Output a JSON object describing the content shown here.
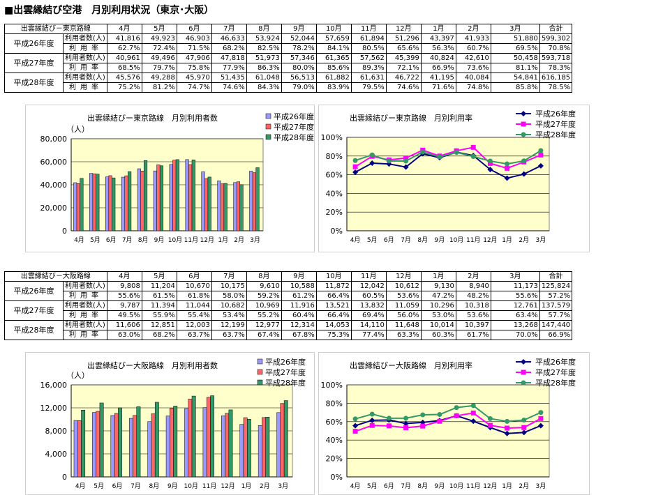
{
  "page": {
    "title": "■出雲縁結び空港　月別利用状況（東京･大阪）"
  },
  "months": [
    "4月",
    "5月",
    "6月",
    "7月",
    "8月",
    "9月",
    "10月",
    "11月",
    "12月",
    "1月",
    "2月",
    "3月"
  ],
  "colors": {
    "h26": "#9999ff",
    "h27": "#ff6666",
    "h28": "#339966",
    "h26_line": "#000080",
    "h27_line": "#ff00ff",
    "h28_line": "#339966",
    "plot_bg": "#ffffcc"
  },
  "tokyo_table": {
    "route_label": "出雲縁結び－東京路線",
    "total_label": "合計",
    "months": [
      "4月",
      "5月",
      "6月",
      "7月",
      "8月",
      "9月",
      "10月",
      "11月",
      "12月",
      "1月",
      "2月",
      "3月"
    ],
    "rows": [
      {
        "year": "平成26年度",
        "users_label": "利用者数(人)",
        "users": [
          "41,816",
          "49,923",
          "46,903",
          "46,633",
          "53,924",
          "52,044",
          "57,659",
          "61,894",
          "51,296",
          "43,397",
          "41,933",
          "51,880",
          "599,302"
        ],
        "rate_label": "利用率",
        "rates": [
          "62.7%",
          "72.4%",
          "71.5%",
          "68.2%",
          "82.5%",
          "78.2%",
          "84.1%",
          "80.5%",
          "65.6%",
          "56.3%",
          "60.7%",
          "69.5%",
          "70.8%"
        ]
      },
      {
        "year": "平成27年度",
        "users_label": "利用者数(人)",
        "users": [
          "40,961",
          "49,496",
          "47,906",
          "47,818",
          "51,973",
          "57,346",
          "61,365",
          "57,562",
          "45,399",
          "40,824",
          "42,610",
          "50,458",
          "593,718"
        ],
        "rate_label": "利用率",
        "rates": [
          "68.5%",
          "79.7%",
          "75.8%",
          "77.9%",
          "86.3%",
          "80.0%",
          "85.6%",
          "89.3%",
          "72.1%",
          "66.9%",
          "73.6%",
          "81.1%",
          "78.3%"
        ]
      },
      {
        "year": "平成28年度",
        "users_label": "利用者数(人)",
        "users": [
          "45,576",
          "49,288",
          "45,970",
          "51,435",
          "61,048",
          "56,513",
          "61,882",
          "61,631",
          "46,722",
          "41,195",
          "40,084",
          "54,841",
          "616,185"
        ],
        "rate_label": "利用率",
        "rates": [
          "75.2%",
          "81.2%",
          "74.7%",
          "74.6%",
          "84.3%",
          "79.0%",
          "83.9%",
          "79.5%",
          "74.6%",
          "71.6%",
          "74.8%",
          "85.8%",
          "78.5%"
        ]
      }
    ]
  },
  "osaka_table": {
    "route_label": "出雲縁結び－大阪路線",
    "total_label": "合計",
    "months": [
      "4月",
      "5月",
      "6月",
      "7月",
      "8月",
      "9月",
      "10月",
      "11月",
      "12月",
      "1月",
      "2月",
      "3月"
    ],
    "rows": [
      {
        "year": "平成26年度",
        "users_label": "利用者数(人)",
        "users": [
          "9,808",
          "11,204",
          "10,670",
          "10,175",
          "9,610",
          "10,588",
          "11,872",
          "12,042",
          "10,612",
          "9,130",
          "8,940",
          "11,173",
          "125,824"
        ],
        "rate_label": "利用率",
        "rates": [
          "55.6%",
          "61.5%",
          "61.8%",
          "58.0%",
          "59.2%",
          "61.2%",
          "66.4%",
          "60.5%",
          "53.6%",
          "47.2%",
          "48.2%",
          "55.6%",
          "57.2%"
        ]
      },
      {
        "year": "平成27年度",
        "users_label": "利用者数(人)",
        "users": [
          "9,787",
          "11,394",
          "11,044",
          "10,682",
          "10,969",
          "11,916",
          "13,521",
          "13,832",
          "11,059",
          "10,296",
          "10,318",
          "12,761",
          "137,579"
        ],
        "rate_label": "利用率",
        "rates": [
          "49.5%",
          "55.9%",
          "55.4%",
          "53.4%",
          "55.2%",
          "60.4%",
          "66.4%",
          "69.4%",
          "56.0%",
          "53.0%",
          "53.6%",
          "63.4%",
          "57.7%"
        ]
      },
      {
        "year": "平成28年度",
        "users_label": "利用者数(人)",
        "users": [
          "11,606",
          "12,851",
          "12,003",
          "12,199",
          "12,977",
          "12,314",
          "14,053",
          "14,110",
          "11,648",
          "10,014",
          "10,397",
          "13,268",
          "147,440"
        ],
        "rate_label": "利用率",
        "rates": [
          "63.0%",
          "68.2%",
          "63.7%",
          "63.7%",
          "67.4%",
          "67.8%",
          "75.3%",
          "77.4%",
          "63.3%",
          "60.3%",
          "61.7%",
          "70.0%",
          "66.9%"
        ]
      }
    ]
  },
  "chart_data": [
    {
      "id": "tokyo_users",
      "type": "bar",
      "title": "出雲縁結びー東京路線　月別利用者数",
      "ylabel": "（人）",
      "categories": [
        "4月",
        "5月",
        "6月",
        "7月",
        "8月",
        "9月",
        "10月",
        "11月",
        "12月",
        "1月",
        "2月",
        "3月"
      ],
      "ylim": [
        0,
        80000
      ],
      "yticks": [
        "0",
        "20,000",
        "40,000",
        "60,000",
        "80,000"
      ],
      "ytick_values": [
        0,
        20000,
        40000,
        60000,
        80000
      ],
      "legend": "top-right",
      "grid": true,
      "series": [
        {
          "name": "平成26年度",
          "values": [
            41816,
            49923,
            46903,
            46633,
            53924,
            52044,
            57659,
            61894,
            51296,
            43397,
            41933,
            51880
          ]
        },
        {
          "name": "平成27年度",
          "values": [
            40961,
            49496,
            47906,
            47818,
            51973,
            57346,
            61365,
            57562,
            45399,
            40824,
            42610,
            50458
          ]
        },
        {
          "name": "平成28年度",
          "values": [
            45576,
            49288,
            45970,
            51435,
            61048,
            56513,
            61882,
            61631,
            46722,
            41195,
            40084,
            54841
          ]
        }
      ]
    },
    {
      "id": "tokyo_rate",
      "type": "line",
      "title": "出雲縁結びー東京路線　月別利用率",
      "categories": [
        "4月",
        "5月",
        "6月",
        "7月",
        "8月",
        "9月",
        "10月",
        "11月",
        "12月",
        "1月",
        "2月",
        "3月"
      ],
      "ylim": [
        0,
        100
      ],
      "yticks": [
        "0%",
        "20%",
        "40%",
        "60%",
        "80%",
        "100%"
      ],
      "ytick_values": [
        0,
        20,
        40,
        60,
        80,
        100
      ],
      "legend": "top-right",
      "grid": true,
      "series": [
        {
          "name": "平成26年度",
          "values": [
            62.7,
            72.4,
            71.5,
            68.2,
            82.5,
            78.2,
            84.1,
            80.5,
            65.6,
            56.3,
            60.7,
            69.5
          ]
        },
        {
          "name": "平成27年度",
          "values": [
            68.5,
            79.7,
            75.8,
            77.9,
            86.3,
            80.0,
            85.6,
            89.3,
            72.1,
            66.9,
            73.6,
            81.1
          ]
        },
        {
          "name": "平成28年度",
          "values": [
            75.2,
            81.2,
            74.7,
            74.6,
            84.3,
            79.0,
            83.9,
            79.5,
            74.6,
            71.6,
            74.8,
            85.8
          ]
        }
      ]
    },
    {
      "id": "osaka_users",
      "type": "bar",
      "title": "出雲縁結びー大阪路線　月別利用者数",
      "ylabel": "（人）",
      "categories": [
        "4月",
        "5月",
        "6月",
        "7月",
        "8月",
        "9月",
        "10月",
        "11月",
        "12月",
        "1月",
        "2月",
        "3月"
      ],
      "ylim": [
        0,
        16000
      ],
      "yticks": [
        "0",
        "4,000",
        "8,000",
        "12,000",
        "16,000"
      ],
      "ytick_values": [
        0,
        4000,
        8000,
        12000,
        16000
      ],
      "legend": "top-right",
      "grid": true,
      "series": [
        {
          "name": "平成26年度",
          "values": [
            9808,
            11204,
            10670,
            10175,
            9610,
            10588,
            11872,
            12042,
            10612,
            9130,
            8940,
            11173
          ]
        },
        {
          "name": "平成27年度",
          "values": [
            9787,
            11394,
            11044,
            10682,
            10969,
            11916,
            13521,
            13832,
            11059,
            10296,
            10318,
            12761
          ]
        },
        {
          "name": "平成28年度",
          "values": [
            11606,
            12851,
            12003,
            12199,
            12977,
            12314,
            14053,
            14110,
            11648,
            10014,
            10397,
            13268
          ]
        }
      ]
    },
    {
      "id": "osaka_rate",
      "type": "line",
      "title": "出雲縁結びー大阪路線　月別利用率",
      "categories": [
        "4月",
        "5月",
        "6月",
        "7月",
        "8月",
        "9月",
        "10月",
        "11月",
        "12月",
        "1月",
        "2月",
        "3月"
      ],
      "ylim": [
        0,
        100
      ],
      "yticks": [
        "0%",
        "20%",
        "40%",
        "60%",
        "80%",
        "100%"
      ],
      "ytick_values": [
        0,
        20,
        40,
        60,
        80,
        100
      ],
      "legend": "top-right",
      "grid": true,
      "series": [
        {
          "name": "平成26年度",
          "values": [
            55.6,
            61.5,
            61.8,
            58.0,
            59.2,
            61.2,
            66.4,
            60.5,
            53.6,
            47.2,
            48.2,
            55.6
          ]
        },
        {
          "name": "平成27年度",
          "values": [
            49.5,
            55.9,
            55.4,
            53.4,
            55.2,
            60.4,
            66.4,
            69.4,
            56.0,
            53.0,
            53.6,
            63.4
          ]
        },
        {
          "name": "平成28年度",
          "values": [
            63.0,
            68.2,
            63.7,
            63.7,
            67.4,
            67.8,
            75.3,
            77.4,
            63.3,
            60.3,
            61.7,
            70.0
          ]
        }
      ]
    }
  ]
}
